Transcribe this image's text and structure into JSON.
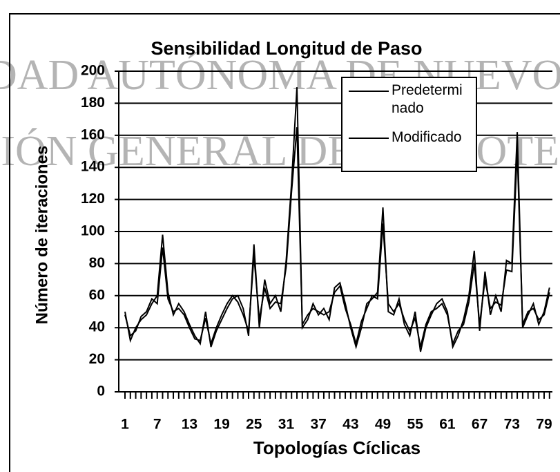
{
  "chart_data": {
    "type": "line",
    "title": "Sensibilidad Longitud de Paso",
    "x_label": "Topologías Cíclicas",
    "y_label": "Número de iteraciones",
    "annotations": [
      "DAD AUTÓNOMA DE NUEVO",
      "CIÓN GENERAL DE BIBLIOTECA"
    ],
    "categories": [
      "1",
      null,
      null,
      null,
      null,
      null,
      "7",
      null,
      null,
      null,
      null,
      null,
      "13",
      null,
      null,
      null,
      null,
      null,
      "19",
      null,
      null,
      null,
      null,
      null,
      "25",
      null,
      null,
      null,
      null,
      null,
      "31",
      null,
      null,
      null,
      null,
      null,
      "37",
      null,
      null,
      null,
      null,
      null,
      "43",
      null,
      null,
      null,
      null,
      null,
      "49",
      null,
      null,
      null,
      null,
      null,
      "55",
      null,
      null,
      null,
      null,
      null,
      "61",
      null,
      null,
      null,
      null,
      null,
      "67",
      null,
      null,
      null,
      null,
      null,
      "73",
      null,
      null,
      null,
      null,
      null,
      "79",
      null
    ],
    "series": [
      {
        "name": "Predeterminado",
        "color": "#000000",
        "values": [
          50,
          32,
          40,
          45,
          48,
          55,
          60,
          98,
          62,
          48,
          55,
          50,
          42,
          35,
          30,
          50,
          28,
          38,
          45,
          52,
          58,
          60,
          52,
          35,
          92,
          40,
          70,
          55,
          60,
          50,
          82,
          130,
          190,
          40,
          45,
          55,
          48,
          52,
          45,
          65,
          68,
          55,
          40,
          28,
          40,
          55,
          58,
          62,
          115,
          50,
          48,
          58,
          42,
          35,
          50,
          25,
          40,
          48,
          55,
          58,
          50,
          28,
          35,
          45,
          60,
          88,
          38,
          75,
          48,
          60,
          50,
          82,
          80,
          162,
          40,
          48,
          55,
          42,
          50,
          65
        ]
      },
      {
        "name": "Modificado",
        "color": "#000000",
        "values": [
          48,
          35,
          38,
          47,
          50,
          58,
          55,
          90,
          58,
          50,
          52,
          48,
          40,
          33,
          32,
          46,
          30,
          40,
          48,
          55,
          60,
          56,
          48,
          38,
          85,
          45,
          65,
          52,
          56,
          55,
          78,
          125,
          165,
          42,
          48,
          52,
          50,
          48,
          50,
          62,
          66,
          52,
          42,
          30,
          44,
          52,
          60,
          58,
          105,
          55,
          50,
          55,
          45,
          38,
          46,
          28,
          42,
          50,
          52,
          55,
          48,
          30,
          38,
          42,
          56,
          80,
          42,
          70,
          52,
          56,
          54,
          76,
          75,
          150,
          42,
          50,
          52,
          45,
          48,
          62
        ]
      }
    ],
    "ylim": [
      0,
      200
    ],
    "yticks": [
      0,
      20,
      40,
      60,
      80,
      100,
      120,
      140,
      160,
      180,
      200
    ],
    "grid": true
  }
}
